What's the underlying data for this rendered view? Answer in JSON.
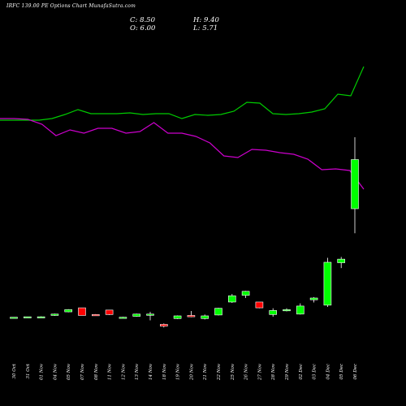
{
  "header": {
    "title": "IRFC 139.00 PE Options Chart MunafaSutra.com",
    "close": "C: 8.50",
    "open": "O: 6.00",
    "high": "H: 9.40",
    "low": "L: 5.71"
  },
  "chart_data": [
    {
      "type": "line",
      "series": [
        {
          "color": "#00cc00",
          "values": [
            148,
            148,
            148,
            148,
            146,
            141,
            135,
            140,
            140,
            140,
            139,
            141,
            140,
            140,
            146,
            141,
            142,
            141,
            137,
            126,
            127,
            140,
            141,
            140,
            138,
            134,
            116,
            118,
            82
          ]
        },
        {
          "color": "#cc00cc",
          "values": [
            146,
            146,
            147,
            153,
            167,
            160,
            164,
            158,
            158,
            164,
            162,
            151,
            164,
            164,
            168,
            176,
            192,
            194,
            184,
            185,
            188,
            190,
            196,
            209,
            208,
            210,
            233
          ]
        }
      ]
    },
    {
      "type": "candlestick",
      "categories": [
        "30 Oct",
        "31 Oct",
        "01 Nov",
        "04 Nov",
        "05 Nov",
        "07 Nov",
        "08 Nov",
        "11 Nov",
        "12 Nov",
        "13 Nov",
        "14 Nov",
        "18 Nov",
        "19 Nov",
        "20 Nov",
        "21 Nov",
        "22 Nov",
        "25 Nov",
        "26 Nov",
        "27 Nov",
        "28 Nov",
        "29 Nov",
        "02 Dec",
        "03 Dec",
        "04 Dec",
        "05 Dec",
        "06 Dec"
      ],
      "ohlc": [
        [
          0.16,
          0.17,
          0.15,
          0.17
        ],
        [
          0.17,
          0.18,
          0.16,
          0.18
        ],
        [
          0.18,
          0.19,
          0.17,
          0.18
        ],
        [
          0.21,
          0.25,
          0.2,
          0.24
        ],
        [
          0.29,
          0.35,
          0.28,
          0.34
        ],
        [
          0.38,
          0.38,
          0.21,
          0.21
        ],
        [
          0.23,
          0.24,
          0.21,
          0.22
        ],
        [
          0.33,
          0.33,
          0.22,
          0.23
        ],
        [
          0.16,
          0.18,
          0.14,
          0.17
        ],
        [
          0.19,
          0.25,
          0.18,
          0.24
        ],
        [
          0.24,
          0.29,
          0.1,
          0.24
        ],
        [
          0.01,
          0.03,
          -0.06,
          -0.03
        ],
        [
          0.14,
          0.21,
          0.13,
          0.2
        ],
        [
          0.21,
          0.31,
          0.17,
          0.18
        ],
        [
          0.14,
          0.23,
          0.12,
          0.2
        ],
        [
          0.22,
          0.38,
          0.21,
          0.37
        ],
        [
          0.51,
          0.69,
          0.49,
          0.65
        ],
        [
          0.66,
          0.76,
          0.6,
          0.75
        ],
        [
          0.51,
          0.51,
          0.37,
          0.38
        ],
        [
          0.23,
          0.37,
          0.18,
          0.32
        ],
        [
          0.32,
          0.37,
          0.3,
          0.34
        ],
        [
          0.24,
          0.48,
          0.23,
          0.42
        ],
        [
          0.56,
          0.62,
          0.5,
          0.6
        ],
        [
          0.44,
          1.5,
          0.4,
          1.4
        ],
        [
          1.39,
          1.52,
          1.27,
          1.47
        ],
        [
          2.6,
          4.2,
          2.05,
          3.7
        ]
      ]
    }
  ]
}
